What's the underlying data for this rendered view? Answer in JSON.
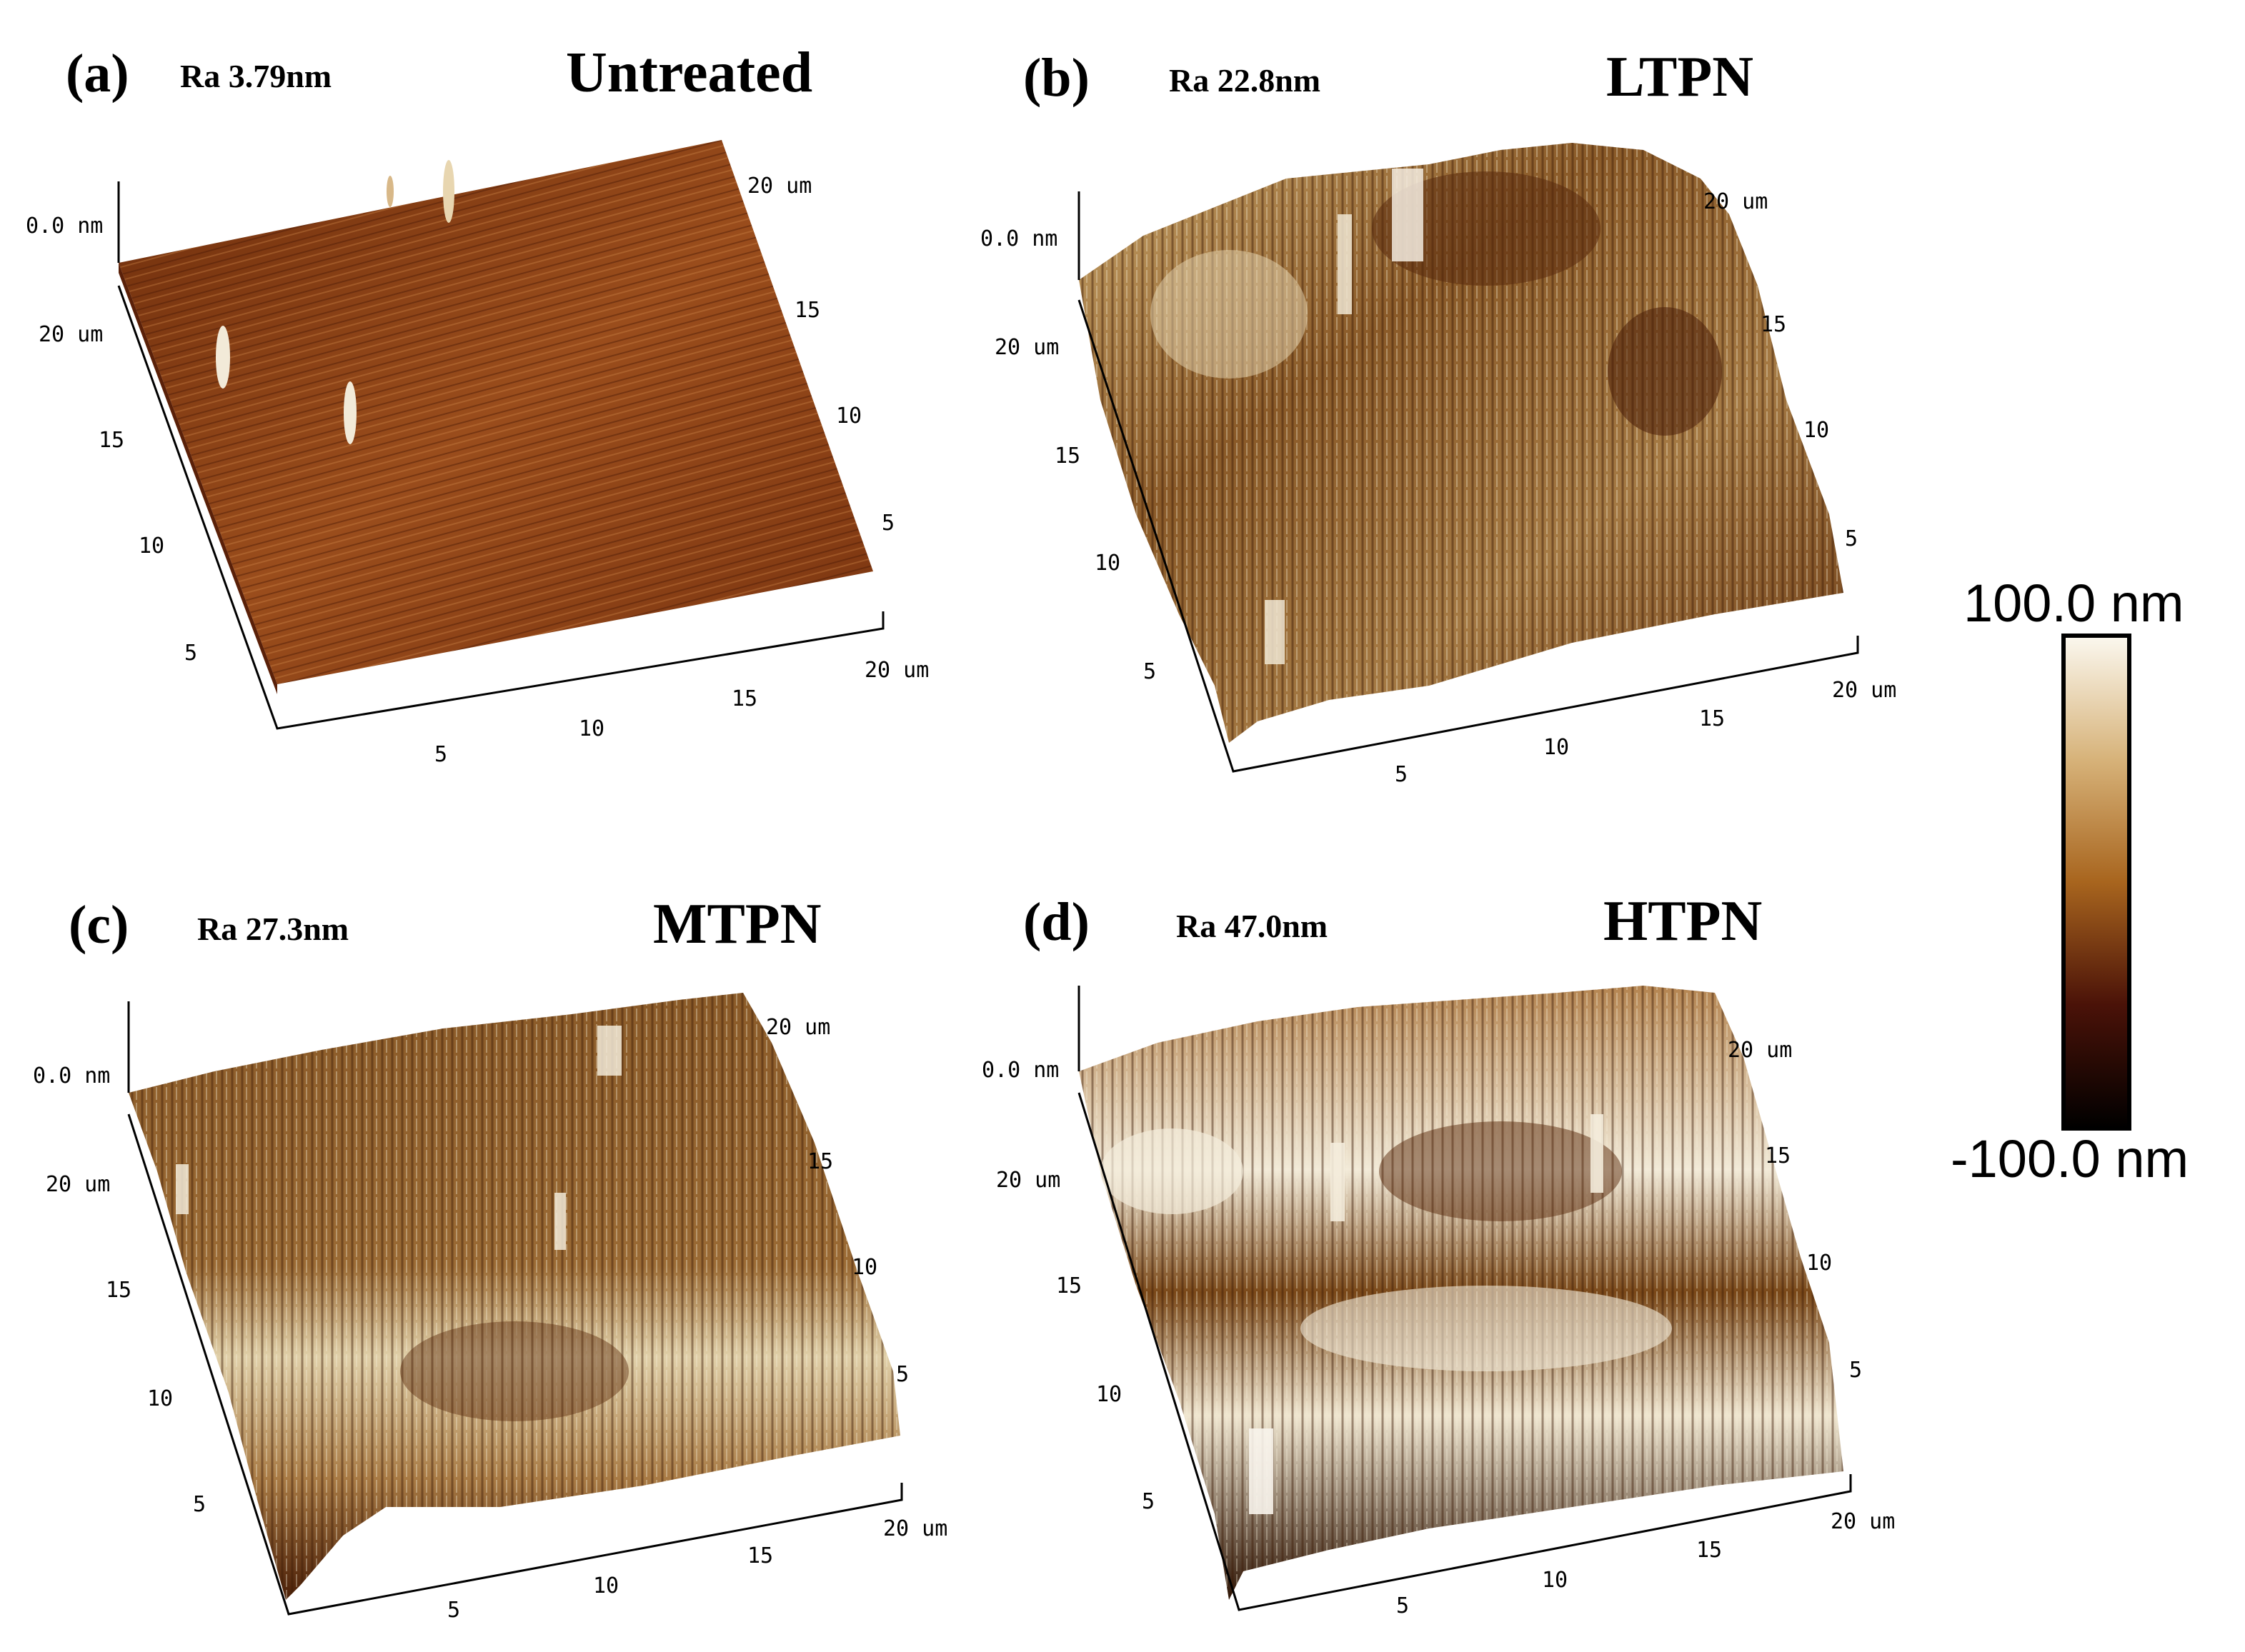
{
  "colors": {
    "scale_top": "#fbf8ef",
    "scale_upper": "#d7b37a",
    "scale_mid": "#a8651e",
    "scale_lower": "#4a1208",
    "scale_bottom": "#000000"
  },
  "colorbar": {
    "max_label": "100.0 nm",
    "min_label": "-100.0 nm"
  },
  "panels": [
    {
      "letter": "(a)",
      "ra": "Ra 3.79nm",
      "treatment": "Untreated",
      "z_label": "0.0 nm",
      "left_axis_ticks": [
        "20 um",
        "15",
        "10",
        "5"
      ],
      "bottom_axis_ticks": [
        "5",
        "10",
        "15",
        "20 um"
      ],
      "right_axis_ticks": [
        "20 um",
        "15",
        "10",
        "5"
      ],
      "surface_colors": [
        "#8a3f14",
        "#b26a2e",
        "#6e2d0c"
      ]
    },
    {
      "letter": "(b)",
      "ra": "Ra 22.8nm",
      "treatment": "LTPN",
      "z_label": "0.0 nm",
      "left_axis_ticks": [
        "20 um",
        "15",
        "10",
        "5"
      ],
      "bottom_axis_ticks": [
        "5",
        "10",
        "15",
        "20 um"
      ],
      "right_axis_ticks": [
        "20 um",
        "15",
        "10",
        "5"
      ],
      "surface_colors": [
        "#9a6a35",
        "#c4a067",
        "#5a2a0c"
      ]
    },
    {
      "letter": "(c)",
      "ra": "Ra 27.3nm",
      "treatment": "MTPN",
      "z_label": "0.0 nm",
      "left_axis_ticks": [
        "20 um",
        "15",
        "10",
        "5"
      ],
      "bottom_axis_ticks": [
        "5",
        "10",
        "15",
        "20 um"
      ],
      "right_axis_ticks": [
        "20 um",
        "15",
        "10",
        "5"
      ],
      "surface_colors": [
        "#a47441",
        "#d8c08f",
        "#5e2e0e"
      ]
    },
    {
      "letter": "(d)",
      "ra": "Ra 47.0nm",
      "treatment": "HTPN",
      "z_label": "0.0 nm",
      "left_axis_ticks": [
        "20 um",
        "15",
        "10",
        "5"
      ],
      "bottom_axis_ticks": [
        "5",
        "10",
        "15",
        "20 um"
      ],
      "right_axis_ticks": [
        "20 um",
        "15",
        "10",
        "5"
      ],
      "surface_colors": [
        "#a0703c",
        "#efe6d2",
        "#3e1a06"
      ]
    }
  ]
}
